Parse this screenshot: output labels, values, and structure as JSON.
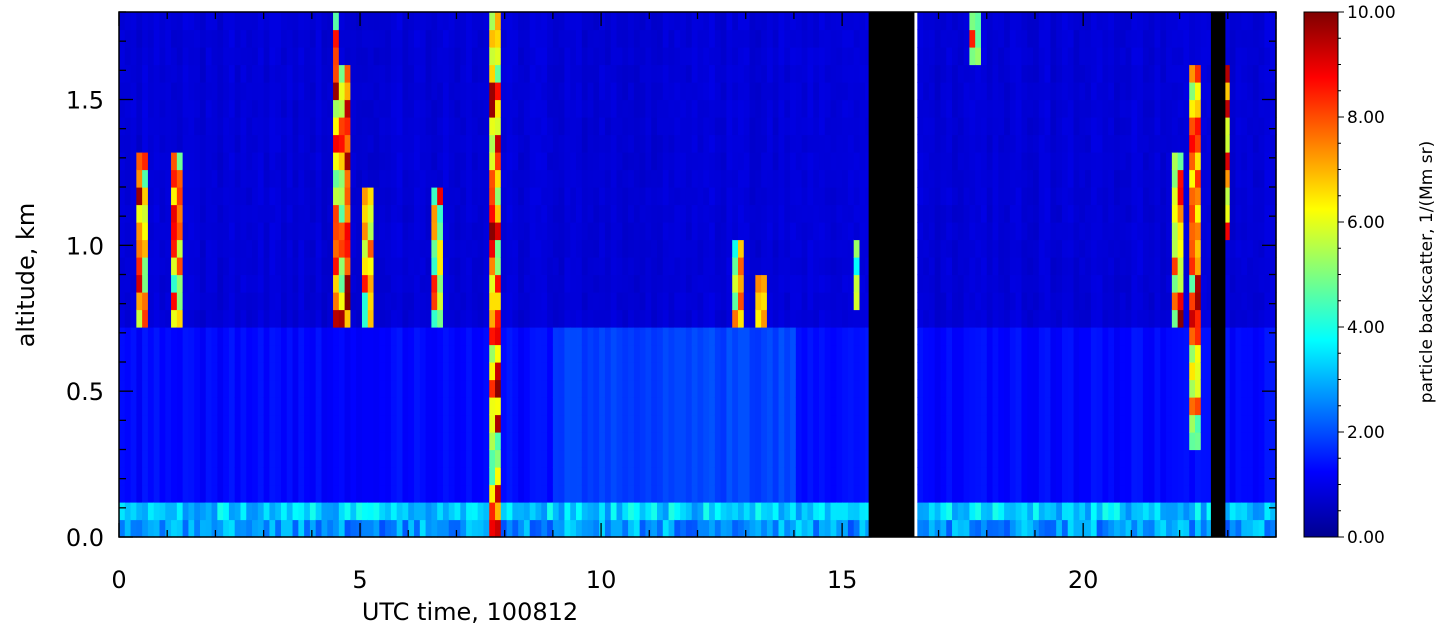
{
  "chart_data": {
    "type": "heatmap",
    "title": "",
    "xlabel": "UTC time, 100812",
    "ylabel": "altitude, km",
    "xlim": [
      0,
      24
    ],
    "ylim": [
      0,
      1.8
    ],
    "x_ticks": [
      {
        "value": 0,
        "label": "0"
      },
      {
        "value": 5,
        "label": "5"
      },
      {
        "value": 10,
        "label": "10"
      },
      {
        "value": 15,
        "label": "15"
      },
      {
        "value": 20,
        "label": "20"
      }
    ],
    "y_ticks": [
      {
        "value": 0.0,
        "label": "0.0"
      },
      {
        "value": 0.5,
        "label": "0.5"
      },
      {
        "value": 1.0,
        "label": "1.0"
      },
      {
        "value": 1.5,
        "label": "1.5"
      }
    ],
    "colorbar": {
      "label": "particle backscatter, 1/(Mm sr)",
      "range": [
        0,
        10
      ],
      "ticks": [
        {
          "value": 0,
          "label": "0.00"
        },
        {
          "value": 2,
          "label": "2.00"
        },
        {
          "value": 4,
          "label": "4.00"
        },
        {
          "value": 6,
          "label": "6.00"
        },
        {
          "value": 8,
          "label": "8.00"
        },
        {
          "value": 10,
          "label": "10.00"
        }
      ],
      "colormap": "rainbow (dark blue to dark red)"
    },
    "data_gaps_hours": [
      [
        15.55,
        16.5
      ],
      [
        22.65,
        22.95
      ]
    ],
    "features": {
      "surface_layer": {
        "altitude_km": [
          0.05,
          0.12
        ],
        "value": 3.5
      },
      "boundary_layer": {
        "altitude_km": [
          0.12,
          0.72
        ],
        "value": 1.3
      },
      "free_troposphere_value": 0.8,
      "cloud_events": [
        {
          "time_hours": 0.5,
          "altitude_km": [
            0.7,
            1.3
          ],
          "peak": 10
        },
        {
          "time_hours": 1.2,
          "altitude_km": [
            0.75,
            1.3
          ],
          "peak": 9
        },
        {
          "time_hours": 4.5,
          "altitude_km": [
            0.7,
            1.8
          ],
          "peak": 10
        },
        {
          "time_hours": 4.7,
          "altitude_km": [
            0.7,
            1.6
          ],
          "peak": 10
        },
        {
          "time_hours": 5.2,
          "altitude_km": [
            0.7,
            1.2
          ],
          "peak": 9
        },
        {
          "time_hours": 6.6,
          "altitude_km": [
            0.7,
            1.2
          ],
          "peak": 9
        },
        {
          "time_hours": 7.8,
          "altitude_km": [
            0.0,
            1.8
          ],
          "peak": 10
        },
        {
          "time_hours": 12.8,
          "altitude_km": [
            0.75,
            1.0
          ],
          "peak": 8
        },
        {
          "time_hours": 13.3,
          "altitude_km": [
            0.7,
            0.9
          ],
          "peak": 8
        },
        {
          "time_hours": 15.3,
          "altitude_km": [
            0.8,
            1.0
          ],
          "peak": 8
        },
        {
          "time_hours": 17.8,
          "altitude_km": [
            1.6,
            1.8
          ],
          "peak": 9
        },
        {
          "time_hours": 22.0,
          "altitude_km": [
            0.7,
            1.3
          ],
          "peak": 10
        },
        {
          "time_hours": 22.3,
          "altitude_km": [
            0.3,
            1.6
          ],
          "peak": 10
        },
        {
          "time_hours": 22.9,
          "altitude_km": [
            1.0,
            1.6
          ],
          "peak": 10
        }
      ]
    }
  }
}
